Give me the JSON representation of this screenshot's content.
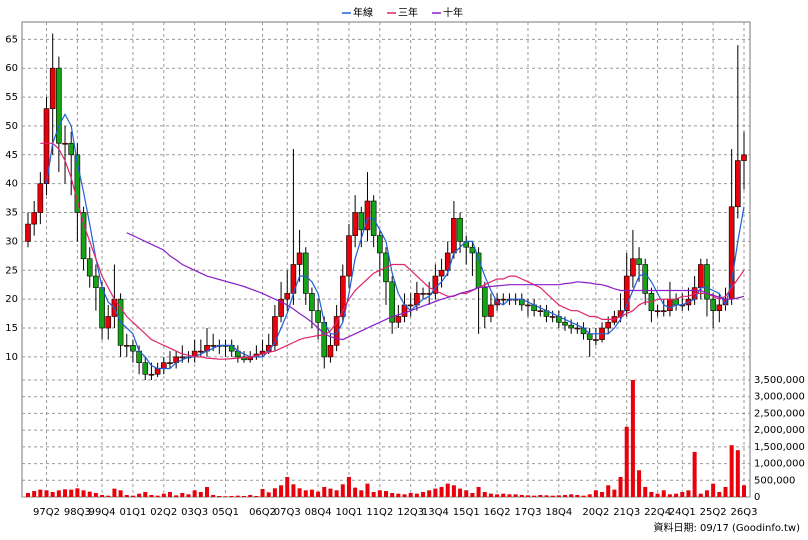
{
  "chart_data": {
    "type": "candlestick",
    "legend": "top",
    "source": "資料日期: 09/17 (Goodinfo.tw)",
    "grid": true,
    "up_color": "#e8000b",
    "down_color": "#16a316",
    "wick_color": "#000000",
    "categories": [
      null,
      null,
      null,
      "97Q2",
      null,
      null,
      null,
      null,
      "98Q3",
      null,
      null,
      null,
      "99Q4",
      null,
      null,
      null,
      null,
      "01Q1",
      null,
      null,
      null,
      null,
      "02Q2",
      null,
      null,
      null,
      null,
      "03Q3",
      null,
      null,
      null,
      null,
      "05Q1",
      null,
      null,
      null,
      null,
      null,
      "06Q2",
      null,
      null,
      null,
      "07Q3",
      null,
      null,
      null,
      null,
      "08Q4",
      null,
      null,
      null,
      null,
      "10Q1",
      null,
      null,
      null,
      null,
      "11Q2",
      null,
      null,
      null,
      null,
      "12Q3",
      null,
      null,
      null,
      "13Q4",
      null,
      null,
      null,
      null,
      "15Q1",
      null,
      null,
      null,
      null,
      "16Q2",
      null,
      null,
      null,
      null,
      "17Q3",
      null,
      null,
      null,
      null,
      "18Q4",
      null,
      null,
      null,
      null,
      null,
      "20Q2",
      null,
      null,
      null,
      null,
      "21Q3",
      null,
      null,
      null,
      null,
      "22Q4",
      null,
      null,
      null,
      "24Q1",
      null,
      null,
      null,
      null,
      "25Q2",
      null,
      null,
      null,
      null,
      "26Q3"
    ],
    "open": [
      30,
      33,
      35,
      40,
      53,
      60,
      47,
      47,
      45,
      35,
      27,
      24,
      22,
      15,
      17,
      20,
      12,
      12,
      11,
      9,
      7,
      7,
      8,
      9,
      9,
      10,
      10,
      10,
      11,
      11,
      12,
      12,
      12,
      12,
      11,
      10,
      9.5,
      10,
      10.5,
      11,
      12,
      17,
      20,
      21,
      26,
      28,
      21,
      18,
      16,
      10,
      12,
      17,
      24,
      31,
      35,
      32,
      37,
      31,
      28,
      23,
      16,
      17,
      19,
      19,
      21,
      21,
      21,
      24,
      25,
      28,
      34,
      30,
      29,
      28,
      22,
      17,
      19,
      20,
      20,
      20,
      20,
      19,
      19,
      18,
      18,
      17,
      17,
      16,
      15.5,
      15,
      15,
      14,
      13,
      13,
      15,
      16,
      17,
      18,
      24,
      27,
      26,
      21,
      18,
      18,
      18,
      20,
      19,
      19,
      20,
      22,
      26,
      20,
      18,
      19,
      20,
      36,
      44
    ],
    "high": [
      35,
      37,
      42,
      55,
      66,
      62,
      50,
      49,
      47,
      36,
      29,
      26,
      23,
      19,
      26,
      21,
      14,
      13,
      12,
      10,
      9,
      9,
      10,
      11,
      11,
      12,
      11,
      13,
      13,
      15,
      14,
      13,
      13,
      13,
      12,
      11,
      11,
      12,
      13,
      14,
      19,
      23,
      25,
      46,
      32,
      29,
      22,
      20,
      17,
      14,
      19,
      26,
      33,
      38,
      36,
      42,
      38,
      32,
      29,
      24,
      19,
      21,
      21,
      23,
      22,
      23,
      26,
      27,
      30,
      37,
      35,
      31,
      30,
      29,
      23,
      21,
      21,
      21,
      21,
      21,
      21,
      20,
      20,
      19,
      19,
      18,
      18,
      17,
      16.5,
      16,
      16,
      15,
      15,
      16,
      17,
      18,
      21,
      28,
      32,
      29,
      27,
      22,
      19,
      20,
      23,
      21,
      21,
      22,
      24,
      27,
      27,
      21,
      21,
      22,
      46,
      64,
      49
    ],
    "low": [
      29,
      31,
      33,
      38,
      45,
      42,
      40,
      38,
      30,
      25,
      22,
      18,
      13,
      13,
      15,
      10,
      10,
      9,
      7,
      6,
      6,
      6.5,
      7,
      8,
      8,
      9,
      9,
      9,
      10,
      10,
      11,
      10.5,
      10,
      10,
      9,
      9,
      9,
      9.5,
      10,
      10.5,
      11,
      16,
      18,
      19,
      23,
      19,
      15,
      13,
      8,
      9,
      11,
      16,
      22,
      29,
      29,
      30,
      29,
      24,
      19,
      14,
      15,
      16,
      17,
      18,
      20,
      19,
      20,
      22,
      24,
      27,
      28,
      26,
      24,
      14,
      15,
      16,
      18,
      19,
      19,
      19,
      18,
      17,
      17,
      17,
      16,
      16,
      15,
      14.5,
      14,
      14,
      13,
      10,
      12,
      12.5,
      14,
      15.5,
      16,
      17,
      22,
      23,
      19,
      16,
      17,
      17,
      17,
      18,
      18,
      18,
      19,
      20,
      17,
      15,
      16,
      18,
      19,
      34,
      39
    ],
    "close": [
      33,
      35,
      40,
      53,
      60,
      47,
      47,
      45,
      35,
      27,
      24,
      22,
      15,
      17,
      20,
      12,
      12,
      11,
      9,
      7,
      7,
      8,
      9,
      9,
      10,
      10,
      10,
      11,
      11,
      12,
      12,
      12,
      12,
      11,
      10,
      9.5,
      10,
      10.5,
      11,
      12,
      17,
      20,
      21,
      26,
      28,
      21,
      18,
      16,
      10,
      12,
      17,
      24,
      31,
      35,
      32,
      37,
      31,
      28,
      23,
      16,
      17,
      19,
      19,
      21,
      21,
      21,
      24,
      25,
      28,
      34,
      30,
      29,
      28,
      22,
      17,
      19,
      20,
      20,
      20,
      20,
      19,
      19,
      18,
      18,
      17,
      17,
      16,
      15.5,
      15,
      15,
      14,
      13,
      13,
      15,
      16,
      17,
      18,
      24,
      27,
      26,
      21,
      18,
      18,
      18,
      20,
      19,
      19,
      20,
      22,
      26,
      20,
      18,
      19,
      20,
      36,
      44,
      45
    ],
    "ylim": [
      6,
      68
    ],
    "yticks": [
      10,
      15,
      20,
      25,
      30,
      35,
      40,
      45,
      50,
      55,
      60,
      65
    ],
    "series": [
      {
        "name": "年線",
        "color": "#1f5fd6",
        "values": [
          null,
          null,
          null,
          40,
          47,
          50,
          52,
          50,
          43.5,
          38.5,
          33,
          27,
          22,
          19.5,
          18.5,
          16,
          15,
          14,
          11,
          10,
          8.5,
          8,
          8,
          8,
          9,
          9.5,
          10,
          10,
          10.5,
          11,
          11.5,
          12,
          12,
          12,
          11,
          10.5,
          10,
          10,
          10,
          11,
          12.5,
          15,
          17.5,
          21,
          24,
          24,
          23,
          21,
          16,
          14,
          14,
          16,
          21,
          27,
          30.5,
          34,
          34,
          32,
          30,
          24.5,
          21,
          19,
          18,
          19,
          20,
          20.5,
          22,
          23,
          24.5,
          28,
          29,
          30,
          30,
          27,
          24,
          21.5,
          19.5,
          19,
          20,
          20,
          20,
          19.5,
          19,
          18.5,
          18,
          17.5,
          17,
          16.5,
          16,
          15.5,
          15,
          14,
          14,
          14,
          14,
          15,
          16.5,
          19,
          21.5,
          24,
          24.5,
          23,
          21,
          19,
          18.5,
          19,
          19,
          19.5,
          20,
          22,
          22,
          21.5,
          21,
          19,
          23,
          30,
          36
        ]
      },
      {
        "name": "三年",
        "color": "#e0246e",
        "values": [
          null,
          null,
          47,
          47,
          47,
          46,
          44,
          41,
          37,
          33,
          30,
          27,
          24,
          22,
          20,
          18.5,
          17,
          16,
          15,
          14,
          13,
          12.5,
          12,
          11.5,
          11,
          10.5,
          10.3,
          10,
          10,
          9.8,
          9.7,
          9.6,
          9.6,
          9.7,
          9.8,
          9.9,
          10,
          10.2,
          10.5,
          10.8,
          11,
          11.5,
          12,
          12.5,
          13,
          13.3,
          13.5,
          13.7,
          13.8,
          14.5,
          16,
          18,
          20,
          21.5,
          22.5,
          23.5,
          24.5,
          25,
          25.5,
          26,
          26,
          26,
          25,
          24,
          23,
          22,
          21.5,
          21,
          20.5,
          20.5,
          21,
          21,
          21.5,
          22,
          22.5,
          23,
          23.5,
          23.5,
          24,
          24,
          23.5,
          23,
          22.5,
          22,
          21,
          20,
          19,
          18.5,
          18,
          18,
          17.5,
          17,
          17,
          16.5,
          16.5,
          16.5,
          17,
          17.5,
          18,
          19,
          19.5,
          19.5,
          20,
          20,
          20,
          20,
          20.5,
          20.5,
          21,
          21,
          21,
          20.5,
          20,
          20.5,
          22,
          23.5,
          25
        ]
      },
      {
        "name": "十年",
        "color": "#8a1fc8",
        "values": [
          null,
          null,
          null,
          null,
          null,
          null,
          null,
          null,
          null,
          null,
          null,
          null,
          null,
          null,
          null,
          null,
          31.5,
          31,
          30.5,
          30,
          29.5,
          29,
          28.5,
          27.5,
          26.8,
          26,
          25.5,
          25,
          24.5,
          24,
          23.7,
          23.4,
          23.1,
          22.8,
          22.5,
          22.2,
          21.8,
          21.4,
          21,
          20.5,
          20,
          19.5,
          19,
          18.3,
          17.5,
          16.8,
          16,
          15,
          14,
          13.5,
          13.2,
          13,
          13.5,
          14,
          14.5,
          15,
          15.5,
          16,
          16.5,
          17,
          17.3,
          17.6,
          18,
          18.4,
          18.8,
          19.2,
          19.6,
          20,
          20.3,
          20.6,
          21,
          21.3,
          21.6,
          22,
          22.1,
          22.2,
          22.3,
          22.4,
          22.5,
          22.5,
          22.5,
          22.5,
          22.5,
          22.5,
          22.5,
          22.5,
          22.5,
          22.7,
          22.8,
          23,
          22.9,
          22.8,
          22.6,
          22.5,
          22.2,
          21.8,
          21.5,
          21.5,
          21.5,
          21.5,
          21.5,
          21.5,
          21.5,
          21.5,
          21.5,
          21.5,
          21.5,
          21.5,
          21.5,
          21.5,
          21,
          20.7,
          20.3,
          20,
          20,
          20.2,
          20.5
        ]
      }
    ],
    "volume": {
      "color": "#e8000b",
      "values": [
        120000,
        180000,
        220000,
        200000,
        150000,
        200000,
        230000,
        220000,
        260000,
        200000,
        160000,
        120000,
        60000,
        40000,
        250000,
        200000,
        60000,
        40000,
        100000,
        150000,
        60000,
        40000,
        100000,
        150000,
        50000,
        120000,
        80000,
        200000,
        150000,
        300000,
        60000,
        30000,
        20000,
        30000,
        40000,
        30000,
        60000,
        30000,
        240000,
        140000,
        260000,
        350000,
        600000,
        380000,
        260000,
        200000,
        220000,
        160000,
        300000,
        250000,
        200000,
        380000,
        600000,
        280000,
        200000,
        400000,
        150000,
        200000,
        180000,
        120000,
        100000,
        80000,
        120000,
        100000,
        150000,
        200000,
        250000,
        300000,
        400000,
        350000,
        250000,
        200000,
        120000,
        300000,
        150000,
        100000,
        80000,
        100000,
        80000,
        80000,
        60000,
        50000,
        40000,
        60000,
        50000,
        40000,
        50000,
        60000,
        80000,
        60000,
        40000,
        80000,
        200000,
        150000,
        350000,
        220000,
        600000,
        2100000,
        3500000,
        800000,
        300000,
        150000,
        100000,
        200000,
        80000,
        100000,
        150000,
        200000,
        1350000,
        100000,
        200000,
        400000,
        150000,
        300000,
        1550000,
        1400000,
        350000
      ],
      "ylim": [
        0,
        3500000
      ],
      "yticks": [
        0,
        {
          "value": 500000,
          "label": "500,000"
        },
        {
          "value": 1000000,
          "label": "1,000,000"
        },
        {
          "value": 1500000,
          "label": "1,500,000"
        },
        {
          "value": 2000000,
          "label": "2,000,000"
        },
        {
          "value": 2500000,
          "label": "2,500,000"
        },
        {
          "value": 3000000,
          "label": "3,000,000"
        },
        {
          "value": 3500000,
          "label": "3,500,000"
        }
      ]
    }
  }
}
